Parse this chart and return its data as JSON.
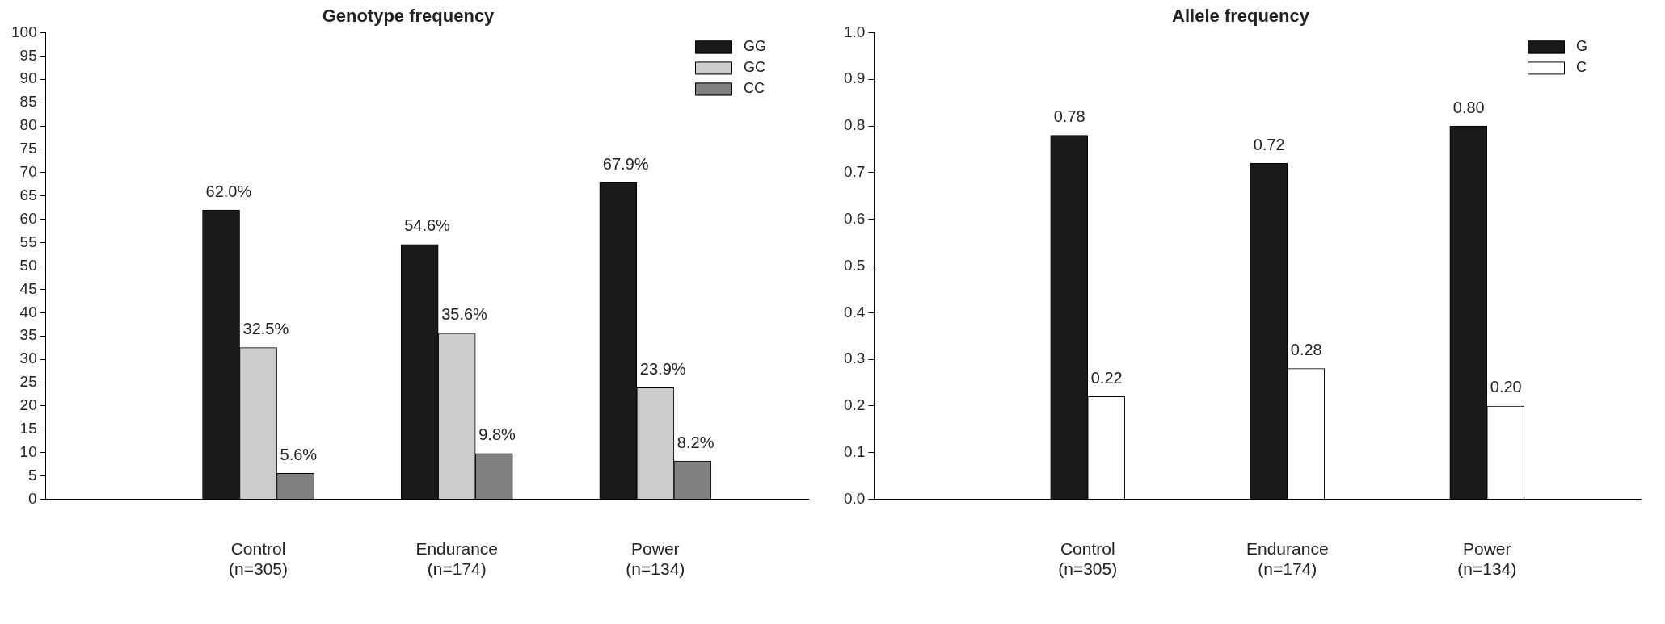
{
  "chart_data": [
    {
      "type": "bar",
      "title": "Genotype frequency",
      "categories": [
        "Control\n(n=305)",
        "Endurance\n(n=174)",
        "Power\n(n=134)"
      ],
      "series": [
        {
          "name": "GG",
          "color": "#1a1a1a",
          "values": [
            62.0,
            54.6,
            67.9
          ],
          "value_labels": [
            "62.0%",
            "54.6%",
            "67.9%"
          ]
        },
        {
          "name": "GC",
          "color": "#cccccc",
          "values": [
            32.5,
            35.6,
            23.9
          ],
          "value_labels": [
            "32.5%",
            "35.6%",
            "23.9%"
          ]
        },
        {
          "name": "CC",
          "color": "#808080",
          "values": [
            5.6,
            9.8,
            8.2
          ],
          "value_labels": [
            "5.6%",
            "9.8%",
            "8.2%"
          ]
        }
      ],
      "ylim": [
        0,
        100
      ],
      "yticks": [
        0,
        5,
        10,
        15,
        20,
        25,
        30,
        35,
        40,
        45,
        50,
        55,
        60,
        65,
        70,
        75,
        80,
        85,
        90,
        95,
        100
      ],
      "grid": false,
      "legend": "top right"
    },
    {
      "type": "bar",
      "title": "Allele frequency",
      "categories": [
        "Control\n(n=305)",
        "Endurance\n(n=174)",
        "Power\n(n=134)"
      ],
      "series": [
        {
          "name": "G",
          "color": "#1a1a1a",
          "values": [
            0.78,
            0.72,
            0.8
          ],
          "value_labels": [
            "0.78",
            "0.72",
            "0.80"
          ]
        },
        {
          "name": "C",
          "color": "#ffffff",
          "values": [
            0.22,
            0.28,
            0.2
          ],
          "value_labels": [
            "0.22",
            "0.28",
            "0.20"
          ]
        }
      ],
      "ylim": [
        0,
        1
      ],
      "yticks": [
        {
          "value": 0,
          "label": "0.0"
        },
        {
          "value": 0.1,
          "label": "0.1"
        },
        {
          "value": 0.2,
          "label": "0.2"
        },
        {
          "value": 0.3,
          "label": "0.3"
        },
        {
          "value": 0.4,
          "label": "0.4"
        },
        {
          "value": 0.5,
          "label": "0.5"
        },
        {
          "value": 0.6,
          "label": "0.6"
        },
        {
          "value": 0.7,
          "label": "0.7"
        },
        {
          "value": 0.8,
          "label": "0.8"
        },
        {
          "value": 0.9,
          "label": "0.9"
        },
        {
          "value": 1,
          "label": "1.0"
        }
      ],
      "grid": false,
      "legend": "top right"
    }
  ]
}
